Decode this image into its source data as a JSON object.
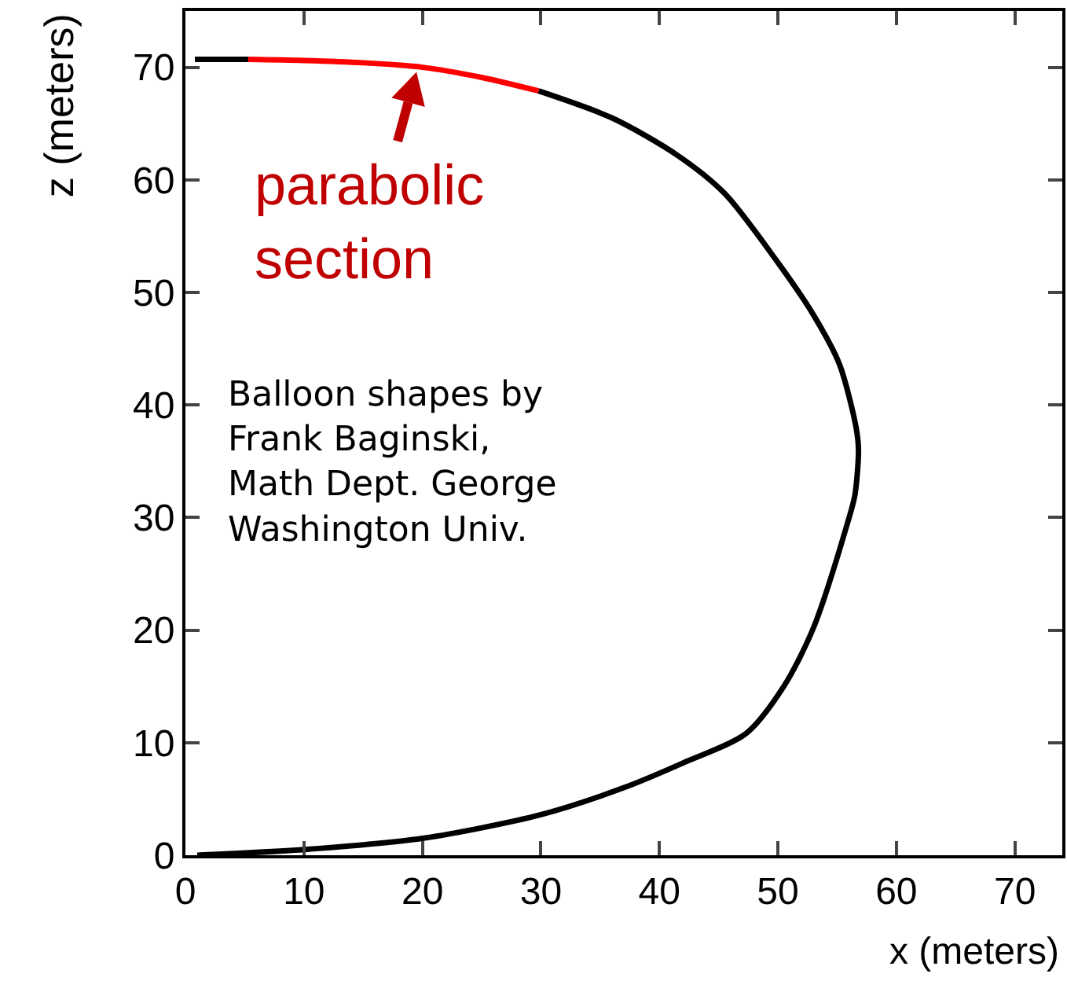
{
  "chart_data": {
    "type": "line",
    "xlabel": "x (meters)",
    "ylabel": "z (meters)",
    "xlim": [
      0,
      74
    ],
    "xticks": [
      0,
      10,
      20,
      30,
      40,
      50,
      60,
      70
    ],
    "ylim": [
      0,
      75
    ],
    "yticks": [
      0,
      10,
      20,
      30,
      40,
      50,
      60,
      70
    ],
    "grid": false,
    "marker": "none",
    "line_style": "solid",
    "series": [
      {
        "color": "#000000",
        "x": [
          0.8,
          5.3,
          15,
          29.8,
          36,
          41.5,
          45.5,
          49.9,
          53,
          55.2,
          56.6,
          56.8,
          56.5,
          55.9,
          53,
          50.5,
          47.3,
          42,
          37,
          30,
          20,
          10,
          1
        ],
        "values": [
          70.7,
          70.7,
          null,
          67.9,
          65.5,
          62.2,
          58.8,
          52.8,
          48,
          43.6,
          38,
          36,
          32,
          29.6,
          20.2,
          15,
          10.8,
          8.2,
          6,
          3.6,
          1.5,
          0.5,
          0
        ]
      },
      {
        "color": "#ff0000",
        "x": [
          5.3,
          10,
          15,
          20,
          25,
          29.8
        ],
        "values": [
          70.7,
          70.6,
          70.4,
          70,
          69.1,
          67.9
        ]
      }
    ],
    "annotations": [
      {
        "text": "parabolic\nsection",
        "x": 19.5,
        "y": 70
      },
      "Balloon shapes by\nFrank Baginski,\nMath Dept. George\nWashington Univ."
    ]
  }
}
